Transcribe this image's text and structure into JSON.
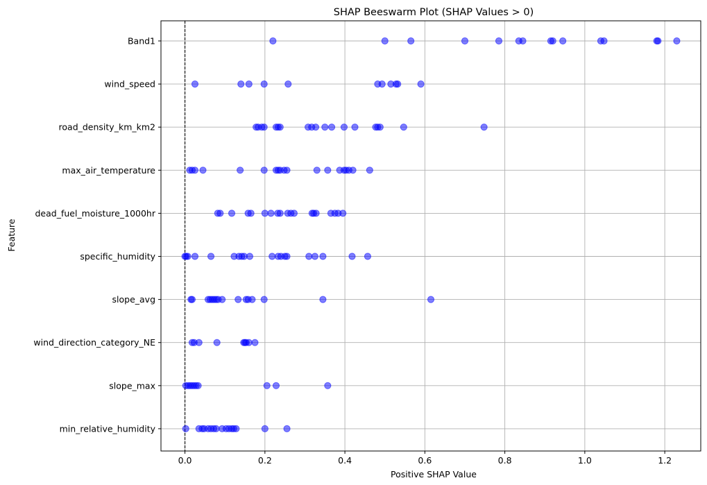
{
  "chart_data": {
    "type": "scatter",
    "title": "SHAP Beeswarm Plot (SHAP Values > 0)",
    "xlabel": "Positive SHAP Value",
    "ylabel": "Feature",
    "xlim": [
      -0.06,
      1.29
    ],
    "xticks": [
      0.0,
      0.2,
      0.4,
      0.6,
      0.8,
      1.0,
      1.2
    ],
    "xtick_labels": [
      "0.0",
      "0.2",
      "0.4",
      "0.6",
      "0.8",
      "1.0",
      "1.2"
    ],
    "grid": true,
    "reference_line_x": 0,
    "point_color": "#0000ff",
    "point_alpha": 0.5,
    "series": [
      {
        "feature": "Band1",
        "values": [
          0.22,
          0.5,
          0.565,
          0.7,
          0.785,
          0.835,
          0.845,
          0.915,
          0.92,
          0.945,
          1.04,
          1.048,
          1.18,
          1.183,
          1.23
        ]
      },
      {
        "feature": "wind_speed",
        "values": [
          0.025,
          0.14,
          0.16,
          0.198,
          0.258,
          0.482,
          0.493,
          0.515,
          0.528,
          0.532,
          0.59
        ]
      },
      {
        "feature": "road_density_km_km2",
        "values": [
          0.178,
          0.183,
          0.192,
          0.198,
          0.228,
          0.233,
          0.238,
          0.308,
          0.317,
          0.327,
          0.35,
          0.367,
          0.398,
          0.425,
          0.477,
          0.482,
          0.488,
          0.547,
          0.748
        ]
      },
      {
        "feature": "max_air_temperature",
        "values": [
          0.012,
          0.018,
          0.025,
          0.045,
          0.138,
          0.198,
          0.228,
          0.233,
          0.238,
          0.248,
          0.255,
          0.33,
          0.357,
          0.387,
          0.398,
          0.403,
          0.41,
          0.42,
          0.462
        ]
      },
      {
        "feature": "dead_fuel_moisture_1000hr",
        "values": [
          0.082,
          0.088,
          0.117,
          0.158,
          0.165,
          0.2,
          0.215,
          0.232,
          0.238,
          0.257,
          0.265,
          0.273,
          0.318,
          0.322,
          0.328,
          0.365,
          0.375,
          0.383,
          0.395
        ]
      },
      {
        "feature": "specific_humidity",
        "values": [
          0.0,
          0.003,
          0.007,
          0.025,
          0.065,
          0.123,
          0.135,
          0.142,
          0.148,
          0.162,
          0.218,
          0.233,
          0.24,
          0.25,
          0.255,
          0.31,
          0.325,
          0.345,
          0.418,
          0.457
        ]
      },
      {
        "feature": "slope_avg",
        "values": [
          0.015,
          0.018,
          0.058,
          0.063,
          0.068,
          0.073,
          0.078,
          0.083,
          0.093,
          0.133,
          0.153,
          0.158,
          0.168,
          0.198,
          0.345,
          0.615
        ]
      },
      {
        "feature": "wind_direction_category_NE",
        "values": [
          0.018,
          0.023,
          0.035,
          0.08,
          0.147,
          0.15,
          0.153,
          0.16,
          0.175
        ]
      },
      {
        "feature": "slope_max",
        "values": [
          0.002,
          0.008,
          0.013,
          0.018,
          0.023,
          0.028,
          0.033,
          0.205,
          0.228,
          0.357
        ]
      },
      {
        "feature": "min_relative_humidity",
        "values": [
          0.002,
          0.035,
          0.043,
          0.048,
          0.058,
          0.065,
          0.072,
          0.078,
          0.093,
          0.103,
          0.11,
          0.117,
          0.122,
          0.128,
          0.2,
          0.255
        ]
      }
    ]
  }
}
